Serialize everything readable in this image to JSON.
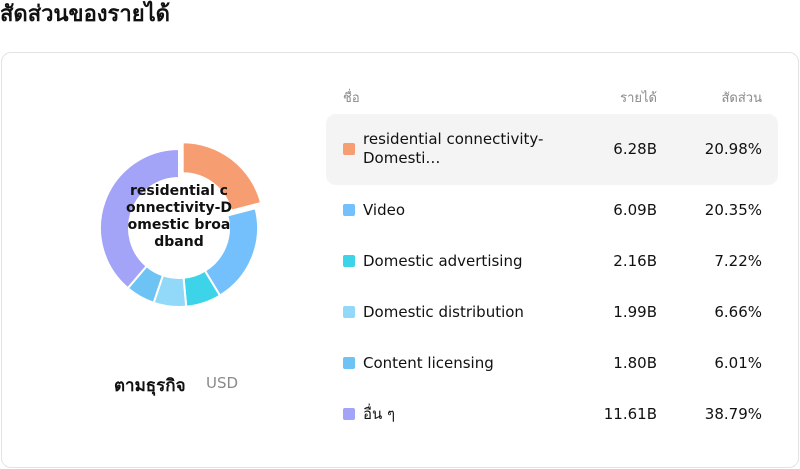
{
  "page": {
    "title": "สัดส่วนของรายได้"
  },
  "donut": {
    "center_label": "residential connectivity-Domestic broadband"
  },
  "footer": {
    "segment_label": "ตามธุรกิจ",
    "currency": "USD"
  },
  "table": {
    "headers": {
      "name": "ชื่อ",
      "revenue": "รายได้",
      "share": "สัดส่วน"
    },
    "rows": [
      {
        "name": "residential connectivity-Domesti…",
        "revenue": "6.28B",
        "share": "20.98%",
        "color": "#f79d72",
        "highlighted": true
      },
      {
        "name": "Video",
        "revenue": "6.09B",
        "share": "20.35%",
        "color": "#74c0fc"
      },
      {
        "name": "Domestic advertising",
        "revenue": "2.16B",
        "share": "7.22%",
        "color": "#3dd3e8"
      },
      {
        "name": "Domestic distribution",
        "revenue": "1.99B",
        "share": "6.66%",
        "color": "#92d8f8"
      },
      {
        "name": "Content licensing",
        "revenue": "1.80B",
        "share": "6.01%",
        "color": "#6ec3f5"
      },
      {
        "name": "อื่น ๆ",
        "revenue": "11.61B",
        "share": "38.79%",
        "color": "#a3a3f8"
      }
    ]
  },
  "chart_data": {
    "type": "pie",
    "categories": [
      "residential connectivity-Domestic broadband",
      "Video",
      "Domestic advertising",
      "Domestic distribution",
      "Content licensing",
      "อื่น ๆ"
    ],
    "values": [
      20.98,
      20.35,
      7.22,
      6.66,
      6.01,
      38.79
    ],
    "revenue_labels": [
      "6.28B",
      "6.09B",
      "2.16B",
      "1.99B",
      "1.80B",
      "11.61B"
    ],
    "colors": [
      "#f79d72",
      "#74c0fc",
      "#3dd3e8",
      "#92d8f8",
      "#6ec3f5",
      "#a3a3f8"
    ],
    "highlighted_index": 0
  }
}
